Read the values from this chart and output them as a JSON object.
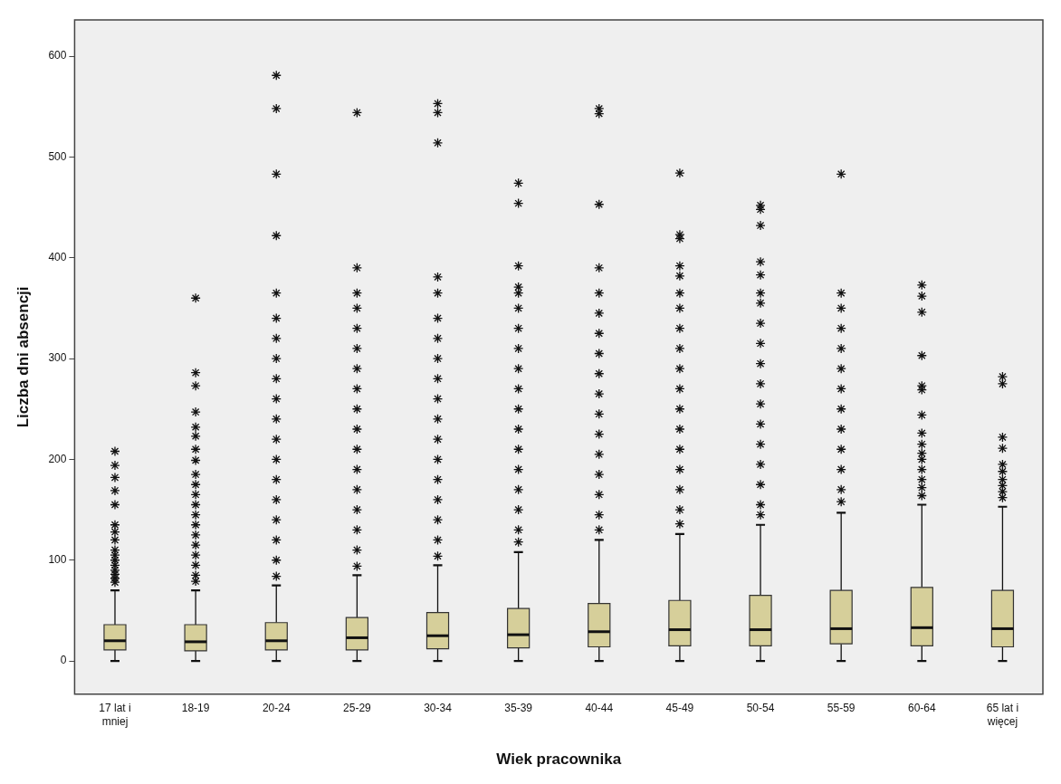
{
  "chart_data": {
    "type": "box",
    "xlabel": "Wiek pracownika",
    "ylabel": "Liczba dni absencji",
    "categories": [
      "17 lat i mniej",
      "18-19",
      "20-24",
      "25-29",
      "30-34",
      "35-39",
      "40-44",
      "45-49",
      "50-54",
      "55-59",
      "60-64",
      "65 lat i więcej"
    ],
    "color": "#d6cf9a",
    "marker": "star",
    "ylim": [
      -33,
      636
    ],
    "yticks": [
      0,
      100,
      200,
      300,
      400,
      500,
      600
    ],
    "boxes": [
      {
        "low": 0,
        "q1": 11,
        "median": 20,
        "q3": 36,
        "high": 70,
        "outliers": [
          78,
          82,
          86,
          90,
          95,
          100,
          105,
          110,
          120,
          128,
          135,
          155,
          169,
          182,
          194,
          208
        ]
      },
      {
        "low": 0,
        "q1": 10,
        "median": 19,
        "q3": 36,
        "high": 70,
        "outliers": [
          79,
          85,
          95,
          105,
          115,
          125,
          135,
          145,
          155,
          165,
          175,
          185,
          199,
          210,
          223,
          232,
          247,
          273,
          286,
          360
        ]
      },
      {
        "low": 0,
        "q1": 11,
        "median": 20,
        "q3": 38,
        "high": 75,
        "outliers": [
          84,
          100,
          120,
          140,
          160,
          180,
          200,
          220,
          240,
          260,
          280,
          300,
          320,
          340,
          365,
          422,
          483,
          548,
          581
        ]
      },
      {
        "low": 0,
        "q1": 11,
        "median": 23,
        "q3": 43,
        "high": 85,
        "outliers": [
          94,
          110,
          130,
          150,
          170,
          190,
          210,
          230,
          250,
          270,
          290,
          310,
          330,
          350,
          365,
          390,
          544
        ]
      },
      {
        "low": 0,
        "q1": 12,
        "median": 25,
        "q3": 48,
        "high": 95,
        "outliers": [
          104,
          120,
          140,
          160,
          180,
          200,
          220,
          240,
          260,
          280,
          300,
          320,
          340,
          365,
          381,
          514,
          544,
          553
        ]
      },
      {
        "low": 0,
        "q1": 13,
        "median": 26,
        "q3": 52,
        "high": 108,
        "outliers": [
          118,
          130,
          150,
          170,
          190,
          210,
          230,
          250,
          270,
          290,
          310,
          330,
          350,
          365,
          371,
          392,
          454,
          474
        ]
      },
      {
        "low": 0,
        "q1": 14,
        "median": 29,
        "q3": 57,
        "high": 120,
        "outliers": [
          130,
          145,
          165,
          185,
          205,
          225,
          245,
          265,
          285,
          305,
          325,
          345,
          365,
          390,
          453,
          543,
          548
        ]
      },
      {
        "low": 0,
        "q1": 15,
        "median": 31,
        "q3": 60,
        "high": 126,
        "outliers": [
          136,
          150,
          170,
          190,
          210,
          230,
          250,
          270,
          290,
          310,
          330,
          350,
          365,
          382,
          392,
          419,
          423,
          484
        ]
      },
      {
        "low": 0,
        "q1": 15,
        "median": 31,
        "q3": 65,
        "high": 135,
        "outliers": [
          145,
          155,
          175,
          195,
          215,
          235,
          255,
          275,
          295,
          315,
          335,
          355,
          365,
          383,
          396,
          432,
          448,
          452
        ]
      },
      {
        "low": 0,
        "q1": 17,
        "median": 32,
        "q3": 70,
        "high": 147,
        "outliers": [
          158,
          170,
          190,
          210,
          230,
          250,
          270,
          290,
          310,
          330,
          350,
          365,
          483
        ]
      },
      {
        "low": 0,
        "q1": 15,
        "median": 33,
        "q3": 73,
        "high": 155,
        "outliers": [
          164,
          172,
          180,
          190,
          200,
          206,
          215,
          226,
          244,
          269,
          273,
          303,
          346,
          362,
          373
        ]
      },
      {
        "low": 0,
        "q1": 14,
        "median": 32,
        "q3": 70,
        "high": 153,
        "outliers": [
          162,
          168,
          174,
          180,
          188,
          195,
          211,
          222,
          275,
          282
        ]
      }
    ]
  }
}
